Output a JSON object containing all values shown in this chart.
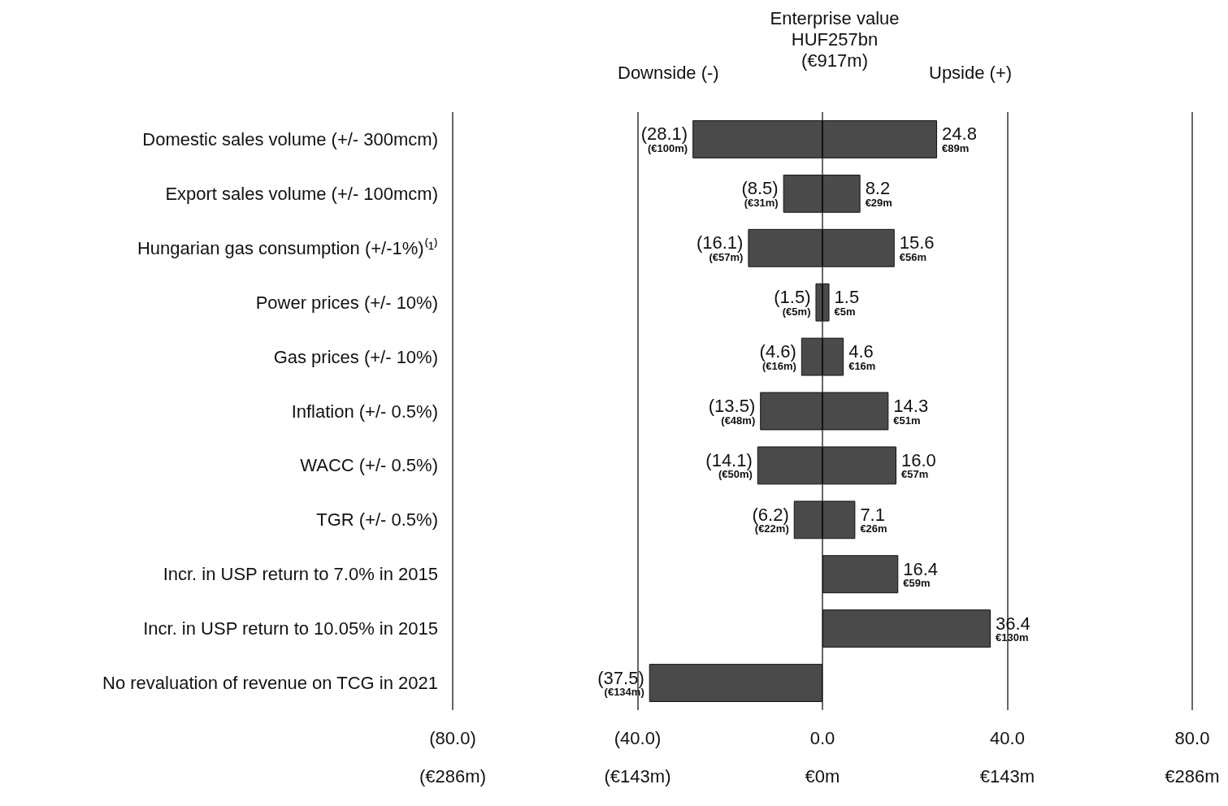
{
  "chart_data": {
    "type": "bar",
    "orientation": "horizontal",
    "stacked": true,
    "title": "Enterprise value",
    "subtitle": "HUF257bn\n(€917m)",
    "annotations": [
      "Downside (-)",
      "Upside (+)"
    ],
    "categories": [
      "Domestic sales volume (+/- 300mcm)",
      "Export sales volume (+/- 100mcm)",
      "Hungarian gas consumption (+/-1%)⁽¹⁾",
      "Power prices (+/- 10%)",
      "Gas prices (+/- 10%)",
      "Inflation (+/- 0.5%)",
      "WACC (+/- 0.5%)",
      "TGR (+/- 0.5%)",
      "Incr. in USP return to 7.0% in 2015",
      "Incr. in USP return to 10.05% in 2015",
      "No revaluation of revenue on TCG in 2021"
    ],
    "series": [
      {
        "color": "#4a4a4a",
        "values": [
          -28.1,
          -8.5,
          -16.1,
          -1.5,
          -4.6,
          -13.5,
          -14.1,
          -6.2,
          null,
          null,
          -37.5
        ],
        "value_labels": [
          "(28.1)\n(€100m)",
          "(8.5)\n(€31m)",
          "(16.1)\n(€57m)",
          "(1.5)\n(€5m)",
          "(4.6)\n(€16m)",
          "(13.5)\n(€48m)",
          "(14.1)\n(€50m)",
          "(6.2)\n(€22m)",
          null,
          null,
          "(37.5)\n(€134m)"
        ]
      },
      {
        "color": "#4a4a4a",
        "values": [
          24.8,
          8.2,
          15.6,
          1.5,
          4.6,
          14.3,
          16.0,
          7.1,
          16.4,
          36.4,
          null
        ],
        "value_labels": [
          "24.8\n€89m",
          "8.2\n€29m",
          "15.6\n€56m",
          "1.5\n€5m",
          "4.6\n€16m",
          "14.3\n€51m",
          "16.0\n€57m",
          "7.1\n€26m",
          "16.4\n€59m",
          "36.4\n€130m",
          null
        ]
      }
    ],
    "xlim": [
      -80,
      80
    ],
    "xticks": [
      {
        "value": -80,
        "label": "(80.0)"
      },
      {
        "value": -40,
        "label": "(40.0)"
      },
      {
        "value": 0,
        "label": "0.0"
      },
      {
        "value": 40,
        "label": "40.0"
      },
      {
        "value": 80,
        "label": "80.0"
      }
    ],
    "x2lim": [
      -286,
      286
    ],
    "x2ticks": [
      {
        "value": -286,
        "label": "(€286m)"
      },
      {
        "value": -143,
        "label": "(€143m)"
      },
      {
        "value": 0,
        "label": "€0m"
      },
      {
        "value": 143,
        "label": "€143m"
      },
      {
        "value": 286,
        "label": "€286m"
      }
    ],
    "grid": "x"
  }
}
